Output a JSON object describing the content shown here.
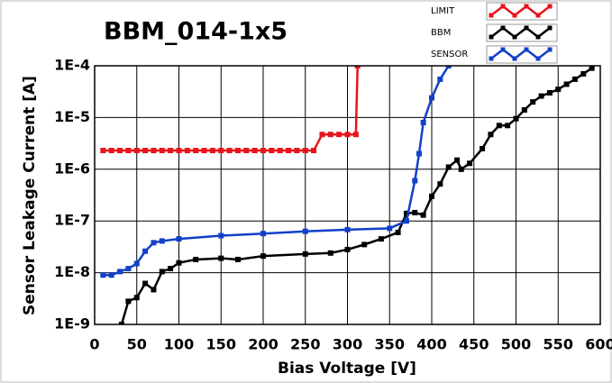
{
  "chart_data": {
    "type": "line",
    "title": "BBM_014-1x5",
    "x_label": "Bias Voltage [V]",
    "y_label": "Sensor Leakage Current [A]",
    "xlim": [
      0,
      600
    ],
    "xticks": [
      0,
      50,
      100,
      150,
      200,
      250,
      300,
      350,
      400,
      450,
      500,
      550,
      600
    ],
    "ylim": [
      1e-09,
      0.0001
    ],
    "log_y": true,
    "grid": true,
    "yticks": [
      {
        "value": 1e-09,
        "label": "1E-9"
      },
      {
        "value": 1e-08,
        "label": "1E-8"
      },
      {
        "value": 1e-07,
        "label": "1E-7"
      },
      {
        "value": 1e-06,
        "label": "1E-6"
      },
      {
        "value": 1e-05,
        "label": "1E-5"
      },
      {
        "value": 0.0001,
        "label": "1E-4"
      }
    ],
    "series": [
      {
        "name": "LIMIT",
        "color": "#e8141c",
        "x": [
          10,
          20,
          30,
          40,
          50,
          60,
          70,
          80,
          90,
          100,
          110,
          120,
          130,
          140,
          150,
          160,
          170,
          180,
          190,
          200,
          210,
          220,
          230,
          240,
          250,
          260,
          270,
          280,
          290,
          300,
          310,
          312
        ],
        "values": [
          2.3e-06,
          2.3e-06,
          2.3e-06,
          2.3e-06,
          2.3e-06,
          2.3e-06,
          2.3e-06,
          2.3e-06,
          2.3e-06,
          2.3e-06,
          2.3e-06,
          2.3e-06,
          2.3e-06,
          2.3e-06,
          2.3e-06,
          2.3e-06,
          2.3e-06,
          2.3e-06,
          2.3e-06,
          2.3e-06,
          2.3e-06,
          2.3e-06,
          2.3e-06,
          2.3e-06,
          2.3e-06,
          2.3e-06,
          4.7e-06,
          4.7e-06,
          4.7e-06,
          4.7e-06,
          4.7e-06,
          0.0001
        ]
      },
      {
        "name": "BBM",
        "color": "#000000",
        "x": [
          32,
          40,
          50,
          60,
          70,
          80,
          90,
          100,
          120,
          150,
          170,
          200,
          250,
          280,
          300,
          320,
          340,
          360,
          370,
          380,
          390,
          400,
          410,
          420,
          430,
          435,
          445,
          460,
          470,
          480,
          490,
          500,
          510,
          520,
          530,
          540,
          550,
          560,
          570,
          580,
          590
        ],
        "values": [
          1e-09,
          2.8e-09,
          3.3e-09,
          6.2e-09,
          4.7e-09,
          1.05e-08,
          1.2e-08,
          1.55e-08,
          1.8e-08,
          1.9e-08,
          1.8e-08,
          2.1e-08,
          2.3e-08,
          2.4e-08,
          2.8e-08,
          3.5e-08,
          4.5e-08,
          6e-08,
          1.4e-07,
          1.45e-07,
          1.3e-07,
          3e-07,
          5.2e-07,
          1.1e-06,
          1.5e-06,
          1e-06,
          1.3e-06,
          2.5e-06,
          4.7e-06,
          7e-06,
          7e-06,
          9.5e-06,
          1.4e-05,
          2e-05,
          2.6e-05,
          3e-05,
          3.5e-05,
          4.4e-05,
          5.5e-05,
          7e-05,
          9e-05
        ]
      },
      {
        "name": "SENSOR",
        "color": "#1240c8",
        "x": [
          10,
          20,
          30,
          40,
          50,
          60,
          70,
          80,
          100,
          150,
          200,
          250,
          300,
          350,
          370,
          380,
          385,
          390,
          400,
          410,
          420
        ],
        "values": [
          9e-09,
          9e-09,
          1.05e-08,
          1.2e-08,
          1.5e-08,
          2.6e-08,
          3.8e-08,
          4.1e-08,
          4.5e-08,
          5.2e-08,
          5.7e-08,
          6.3e-08,
          6.8e-08,
          7.2e-08,
          1e-07,
          6e-07,
          2e-06,
          8e-06,
          2.4e-05,
          5.5e-05,
          0.0001
        ]
      }
    ]
  }
}
